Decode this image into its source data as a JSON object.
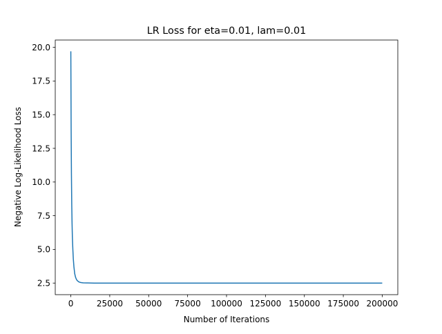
{
  "chart_data": {
    "type": "line",
    "title": "LR Loss for eta=0.01, lam=0.01",
    "xlabel": "Number of Iterations",
    "ylabel": "Negative Log-Likelihood Loss",
    "xlim": [
      -10000,
      210000
    ],
    "ylim": [
      1.64,
      20.54
    ],
    "xticks": [
      0,
      25000,
      50000,
      75000,
      100000,
      125000,
      150000,
      175000,
      200000
    ],
    "xtick_labels": [
      "0",
      "25000",
      "50000",
      "75000",
      "100000",
      "125000",
      "150000",
      "175000",
      "200000"
    ],
    "yticks": [
      2.5,
      5.0,
      7.5,
      10.0,
      12.5,
      15.0,
      17.5,
      20.0
    ],
    "ytick_labels": [
      "2.5",
      "5.0",
      "7.5",
      "10.0",
      "12.5",
      "15.0",
      "17.5",
      "20.0"
    ],
    "grid": false,
    "series": [
      {
        "color": "#1f77b4",
        "x": [
          0,
          200,
          400,
          600,
          800,
          1000,
          1300,
          1600,
          2000,
          2500,
          3000,
          3500,
          4000,
          5000,
          6000,
          7000,
          8000,
          10000,
          15000,
          25000,
          50000,
          100000,
          150000,
          200000
        ],
        "y": [
          19.7,
          14.0,
          10.5,
          8.3,
          6.9,
          5.9,
          5.0,
          4.3,
          3.7,
          3.2,
          2.95,
          2.8,
          2.7,
          2.6,
          2.55,
          2.53,
          2.52,
          2.51,
          2.5,
          2.5,
          2.5,
          2.5,
          2.5,
          2.5
        ]
      }
    ]
  }
}
